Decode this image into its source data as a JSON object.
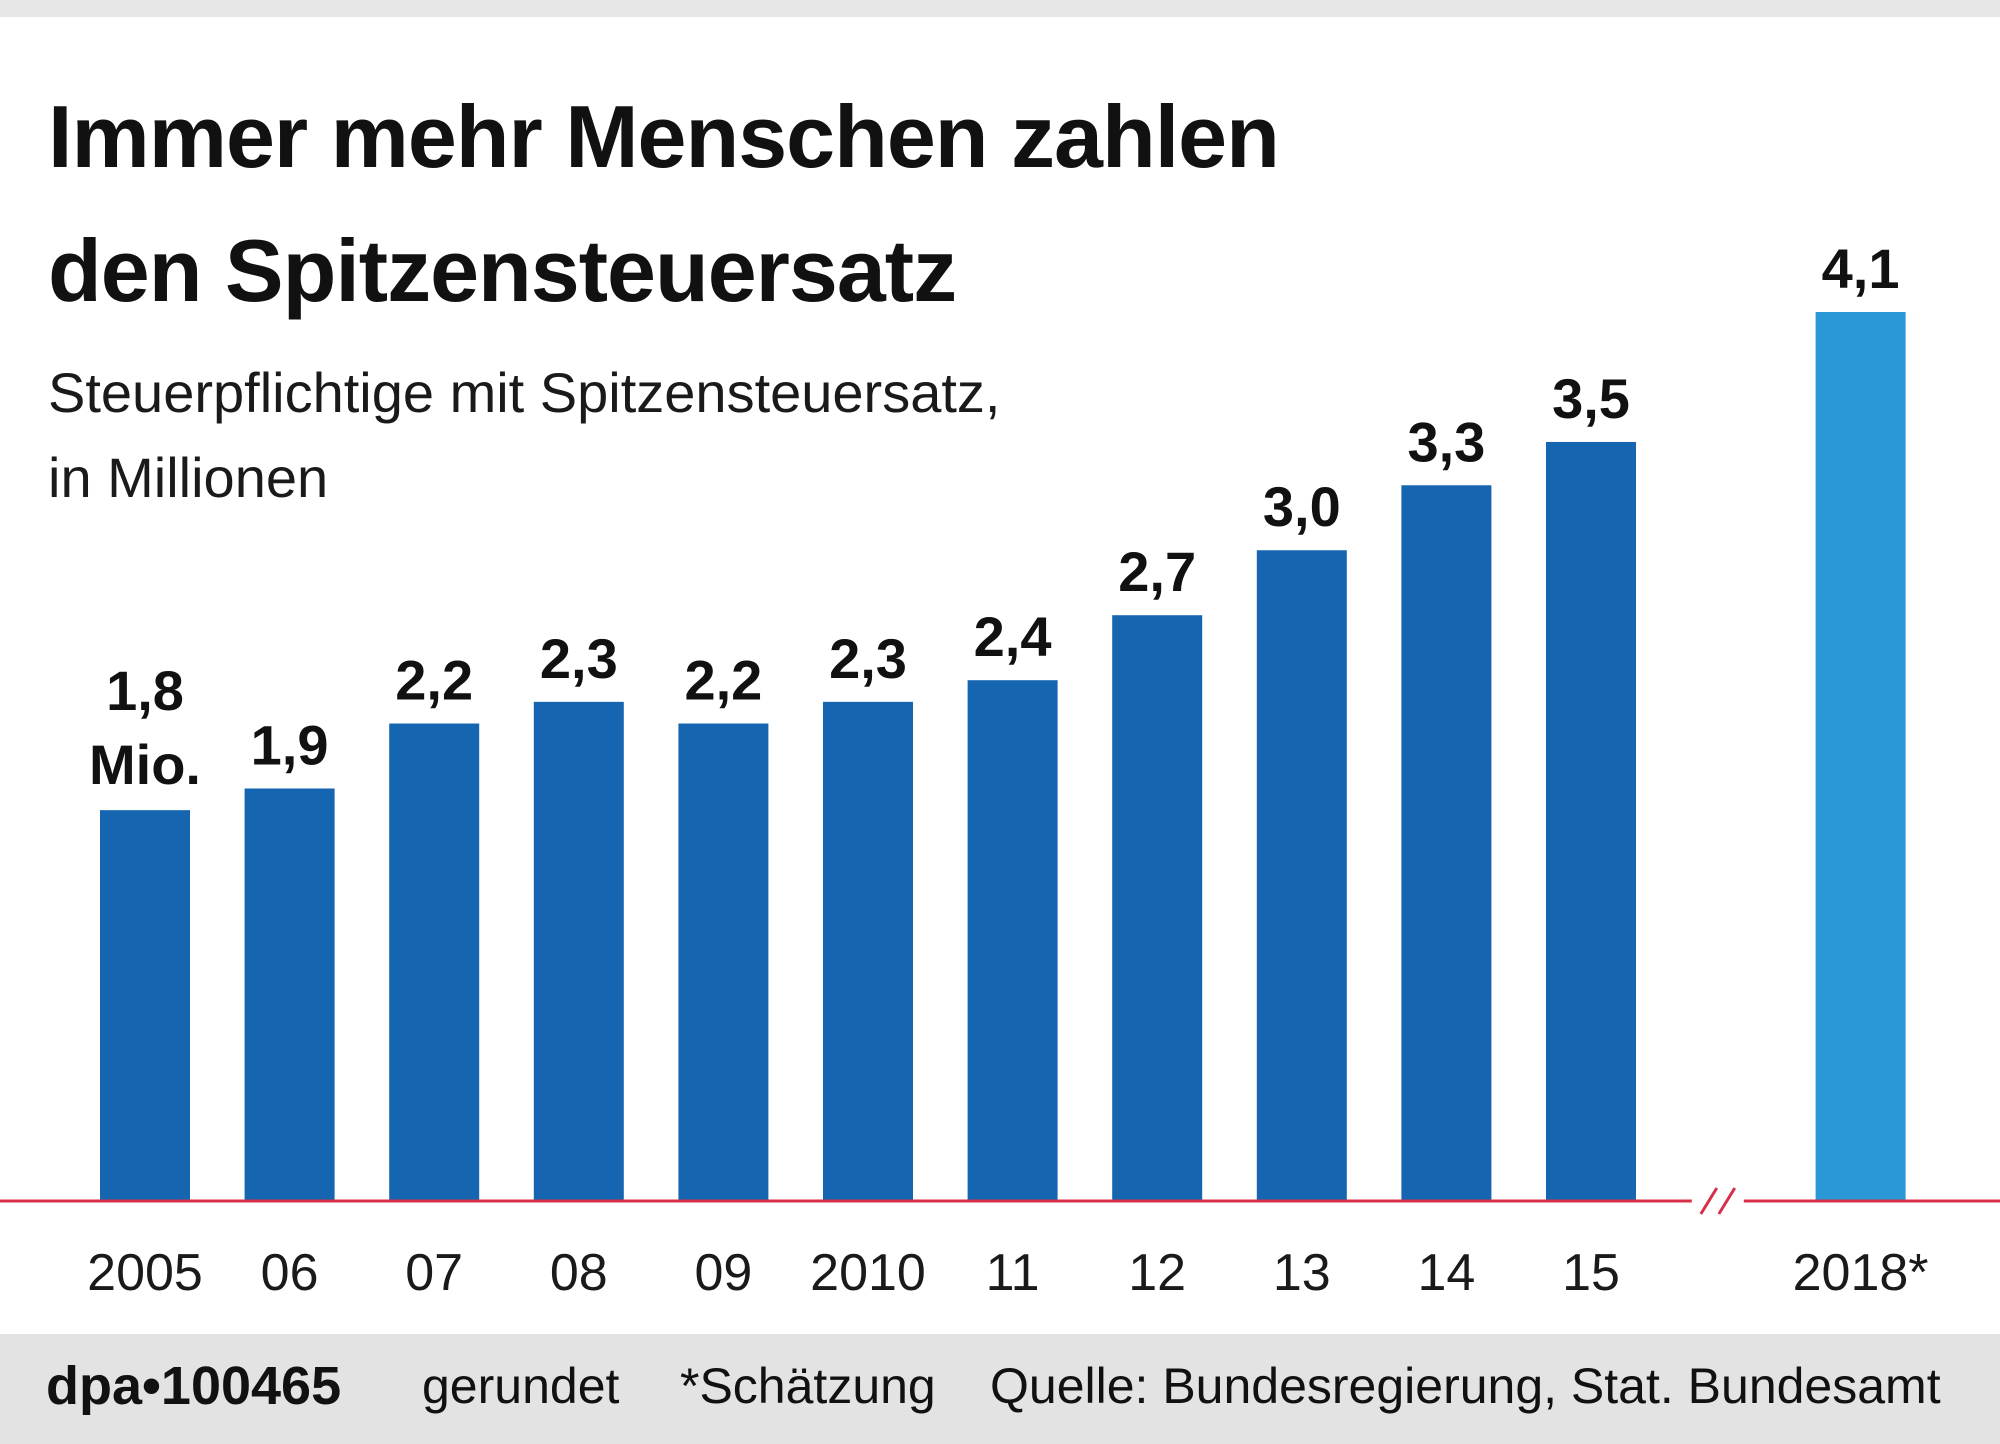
{
  "title": "Immer mehr Menschen zahlen\nden Spitzensteuersatz",
  "subtitle": "Steuerpflichtige mit Spitzensteuersatz,\nin Millionen",
  "chart_data": {
    "type": "bar",
    "title": "Immer mehr Menschen zahlen den Spitzensteuersatz",
    "subtitle": "Steuerpflichtige mit Spitzensteuersatz, in Millionen",
    "categories": [
      "2005",
      "06",
      "07",
      "08",
      "09",
      "2010",
      "11",
      "12",
      "13",
      "14",
      "15",
      "2018*"
    ],
    "values": [
      1.8,
      1.9,
      2.2,
      2.3,
      2.2,
      2.3,
      2.4,
      2.7,
      3.0,
      3.3,
      3.5,
      4.1
    ],
    "labels": [
      "1,8",
      "1,9",
      "2,2",
      "2,3",
      "2,2",
      "2,3",
      "2,4",
      "2,7",
      "3,0",
      "3,3",
      "3,5",
      "4,1"
    ],
    "first_label_unit": "Mio.",
    "estimated": [
      false,
      false,
      false,
      false,
      false,
      false,
      false,
      false,
      false,
      false,
      false,
      true
    ],
    "axis_break_after": "15",
    "ylim": [
      0,
      4.1
    ],
    "grid": false,
    "colors": {
      "bar": "#1565b0",
      "bar_estimate": "#2a98d6",
      "baseline": "#d8304a",
      "label": "#111111"
    }
  },
  "footer": {
    "agency": "dpa•100465",
    "rounded": "gerundet",
    "estimate_note": "*Schätzung",
    "source": "Quelle: Bundesregierung, Stat. Bundesamt"
  }
}
